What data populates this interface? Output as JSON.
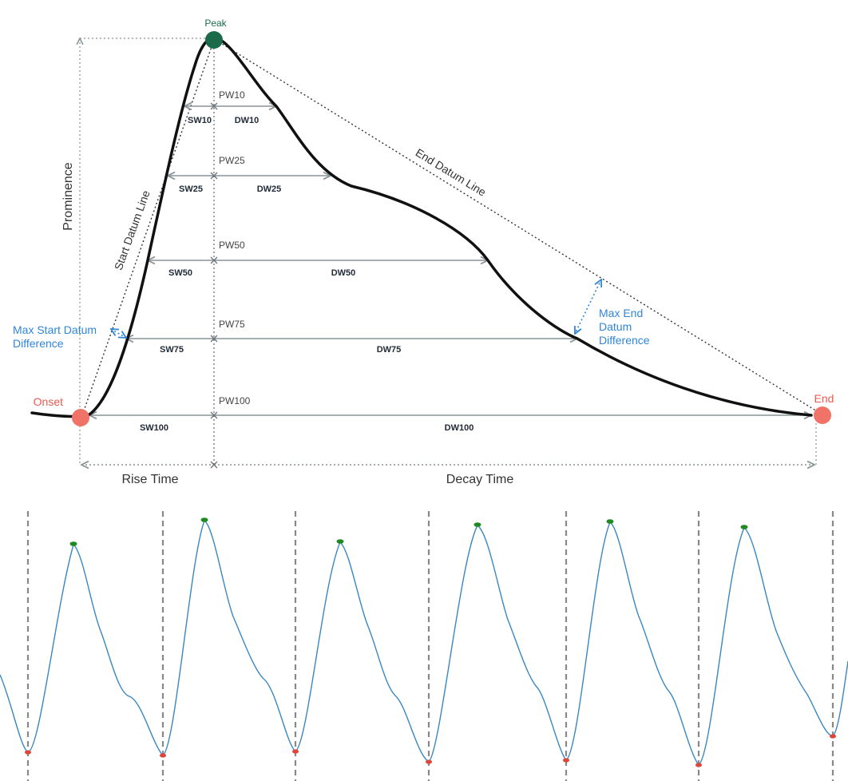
{
  "diagram": {
    "labels": {
      "peak": "Peak",
      "onset": "Onset",
      "end": "End",
      "prominence": "Prominence",
      "start_datum_line": "Start Datum Line",
      "end_datum_line": "End Datum Line",
      "max_start_datum_difference": [
        "Max Start Datum",
        "Difference"
      ],
      "max_end_datum_difference": [
        "Max End",
        "Datum",
        "Difference"
      ],
      "rise_time": "Rise Time",
      "decay_time": "Decay Time"
    },
    "width_levels": [
      {
        "pw": "PW10",
        "sw": "SW10",
        "dw": "DW10"
      },
      {
        "pw": "PW25",
        "sw": "SW25",
        "dw": "DW25"
      },
      {
        "pw": "PW50",
        "sw": "SW50",
        "dw": "DW50"
      },
      {
        "pw": "PW75",
        "sw": "SW75",
        "dw": "DW75"
      },
      {
        "pw": "PW100",
        "sw": "SW100",
        "dw": "DW100"
      }
    ],
    "colors": {
      "curve": "#111111",
      "peak": "#1b6b4a",
      "onset_end": "#f07367",
      "measure": "#8a9499",
      "accent": "#2f86d9"
    }
  },
  "trace": {
    "colors": {
      "signal": "#3a87c0",
      "peak_marker": "#1f8a1f",
      "onset_marker": "#e0453a",
      "divider": "#888888"
    },
    "peak_count": 6
  }
}
